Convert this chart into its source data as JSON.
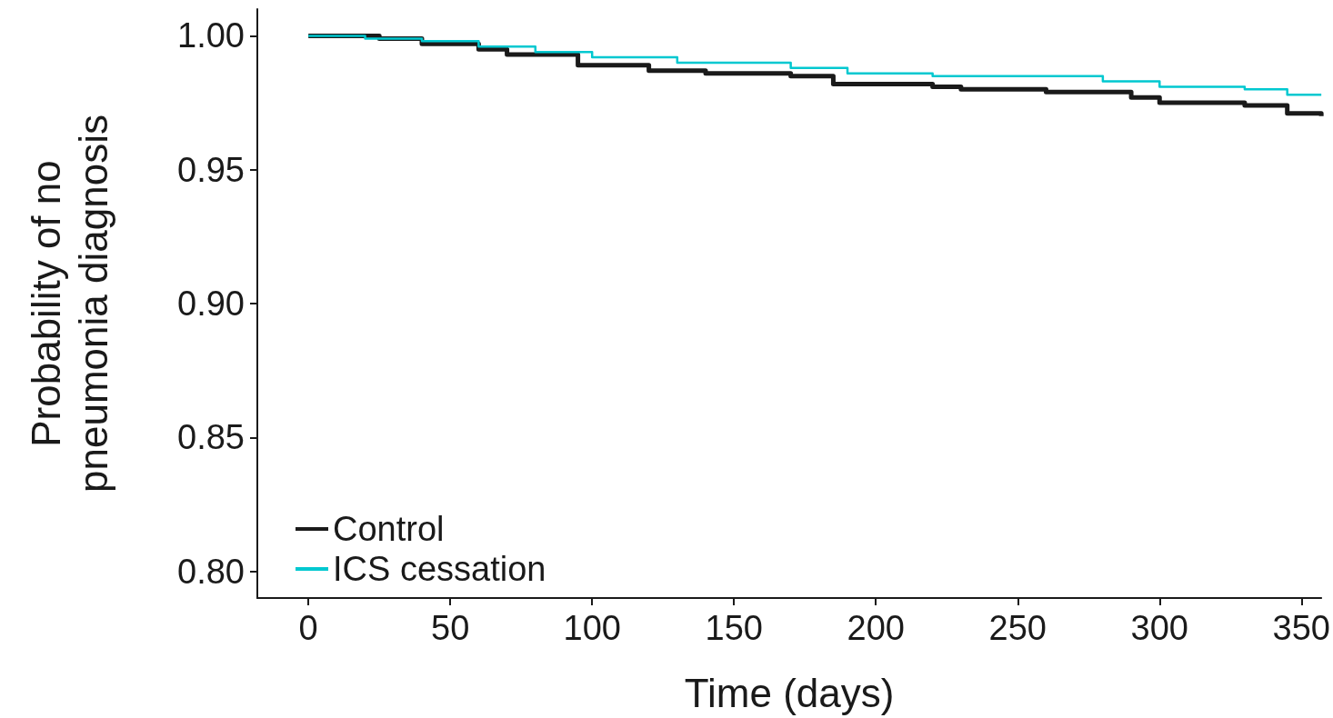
{
  "chart_data": {
    "type": "step",
    "xlabel": "Time (days)",
    "ylabel": "Probability of no\npneumonia diagnosis",
    "xlim": [
      -18,
      357
    ],
    "xticks": [
      0,
      50,
      100,
      150,
      200,
      250,
      300,
      350
    ],
    "ylim": [
      0.79,
      1.01
    ],
    "yticks": [
      {
        "value": 0.8,
        "label": "0.80"
      },
      {
        "value": 0.85,
        "label": "0.85"
      },
      {
        "value": 0.9,
        "label": "0.90"
      },
      {
        "value": 0.95,
        "label": "0.95"
      },
      {
        "value": 1.0,
        "label": "1.00"
      }
    ],
    "grid": false,
    "legend": "bottom left",
    "marker": "none",
    "line_style": "solid",
    "series": [
      {
        "name": "Control",
        "color": "#1a1a1a",
        "x": [
          0,
          25,
          40,
          60,
          70,
          95,
          120,
          140,
          170,
          185,
          220,
          230,
          260,
          290,
          300,
          330,
          345,
          357
        ],
        "values": [
          1.0,
          0.999,
          0.997,
          0.995,
          0.993,
          0.989,
          0.987,
          0.986,
          0.985,
          0.982,
          0.981,
          0.98,
          0.979,
          0.977,
          0.975,
          0.974,
          0.971,
          0.97
        ]
      },
      {
        "name": "ICS cessation",
        "color": "#00c8d0",
        "x": [
          0,
          20,
          40,
          60,
          80,
          100,
          130,
          170,
          190,
          220,
          280,
          300,
          330,
          345,
          357
        ],
        "values": [
          1.0,
          0.999,
          0.998,
          0.996,
          0.994,
          0.992,
          0.99,
          0.988,
          0.986,
          0.985,
          0.983,
          0.981,
          0.98,
          0.978,
          0.978
        ]
      }
    ]
  }
}
